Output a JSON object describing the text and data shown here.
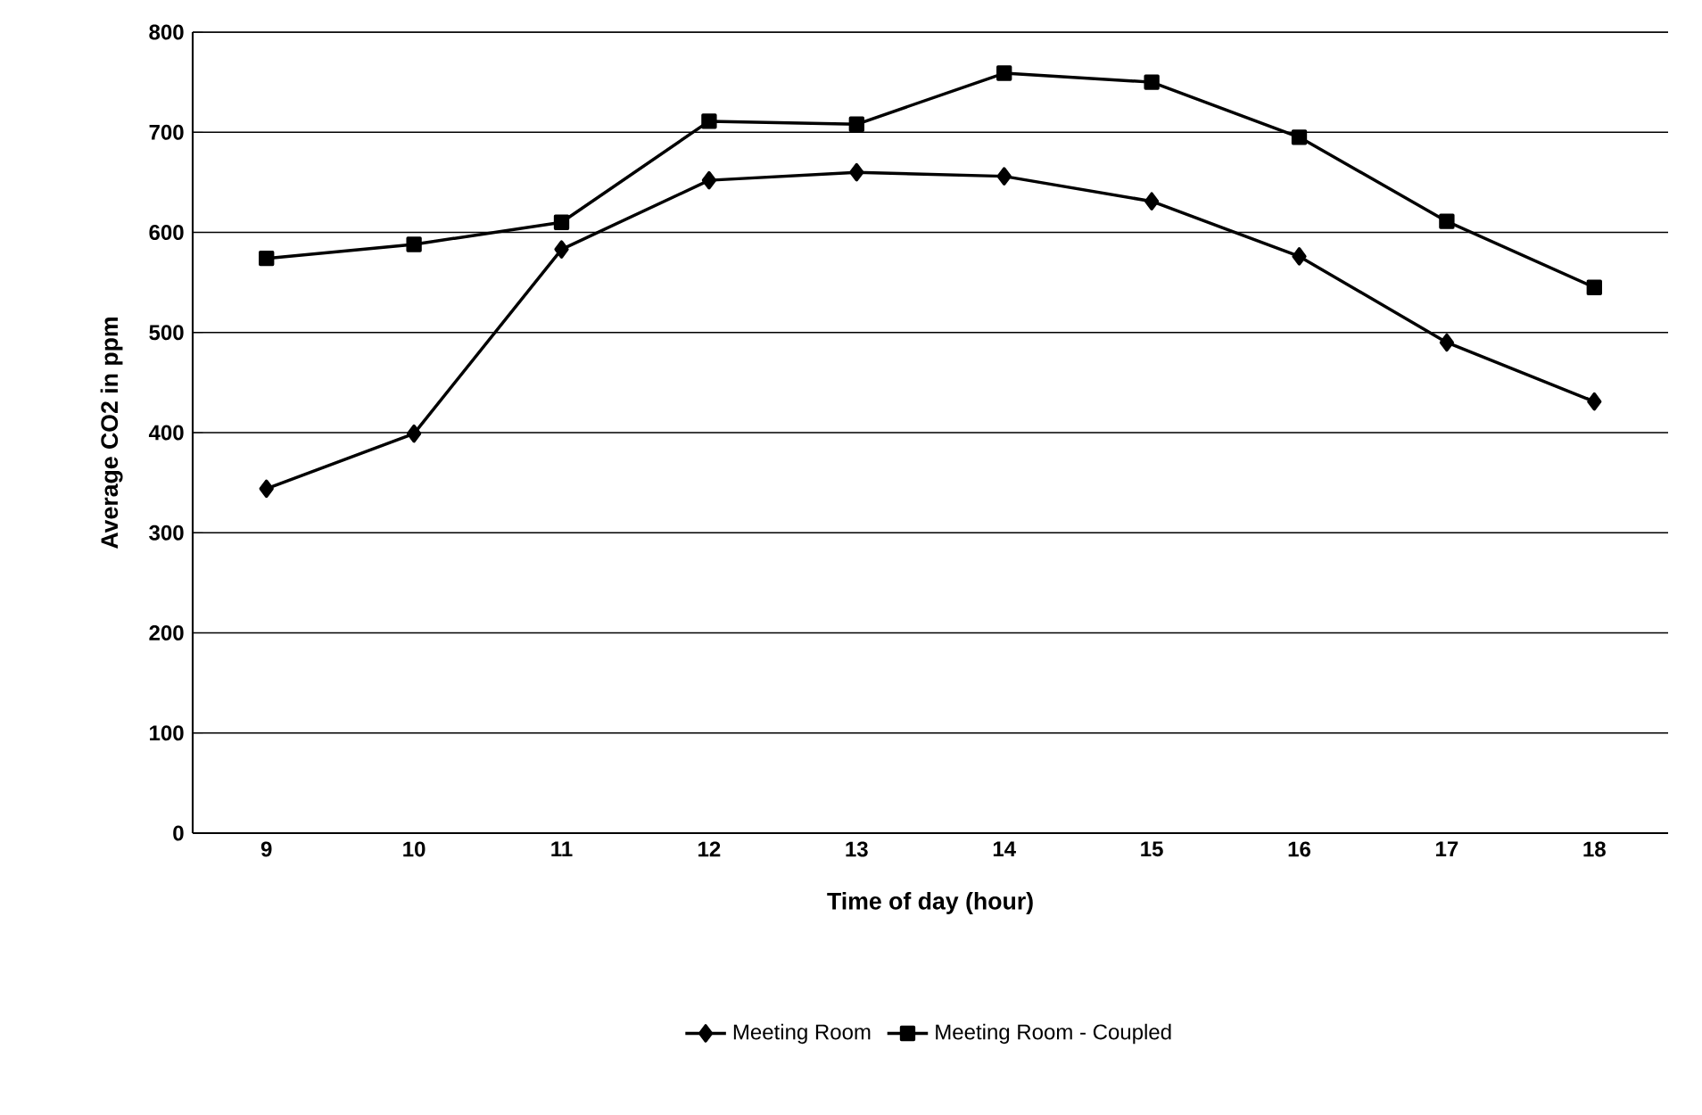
{
  "chart_data": {
    "type": "line",
    "xlabel": "Time of day (hour)",
    "ylabel": "Average CO2 in ppm",
    "categories": [
      "9",
      "10",
      "11",
      "12",
      "13",
      "14",
      "15",
      "16",
      "17",
      "18"
    ],
    "series": [
      {
        "name": "Meeting Room",
        "color": "#000000",
        "marker": "diamond",
        "values": [
          344,
          399,
          583,
          652,
          660,
          656,
          631,
          576,
          490,
          431
        ]
      },
      {
        "name": "Meeting Room - Coupled",
        "color": "#000000",
        "marker": "square",
        "values": [
          574,
          588,
          610,
          711,
          708,
          759,
          750,
          695,
          611,
          545
        ]
      }
    ],
    "ylim": [
      0,
      800
    ],
    "yticks": [
      0,
      100,
      200,
      300,
      400,
      500,
      600,
      700,
      800
    ],
    "grid": "y",
    "legend": "bottom",
    "line_style": "solid"
  }
}
